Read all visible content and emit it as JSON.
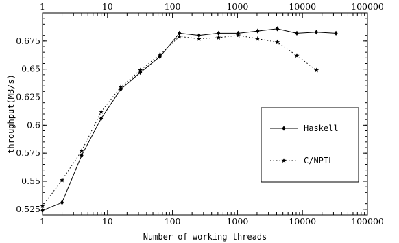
{
  "chart_data": {
    "type": "line",
    "xscale": "log",
    "xlim": [
      1,
      100000
    ],
    "ylim": [
      0.52,
      0.7
    ],
    "xlabel": "Number of working threads",
    "ylabel": "throughput(MB/s)",
    "x_ticks": [
      "1",
      "10",
      "100",
      "1000",
      "10000",
      "100000"
    ],
    "y_ticks": [
      "0.525",
      "0.55",
      "0.575",
      "0.6",
      "0.625",
      "0.65",
      "0.675"
    ],
    "legend_position": "center-right",
    "series": [
      {
        "name": "Haskell",
        "line": "solid",
        "marker": "diamond",
        "x": [
          1,
          2,
          4,
          8,
          16,
          32,
          64,
          128,
          256,
          512,
          1024,
          2048,
          4096,
          8192,
          16384,
          32768
        ],
        "y": [
          0.524,
          0.531,
          0.573,
          0.606,
          0.632,
          0.647,
          0.661,
          0.682,
          0.68,
          0.682,
          0.682,
          0.684,
          0.686,
          0.682,
          0.683,
          0.682
        ]
      },
      {
        "name": "C/NPTL",
        "line": "dotted",
        "marker": "star",
        "x": [
          1,
          2,
          4,
          8,
          16,
          32,
          64,
          128,
          256,
          512,
          1024,
          2048,
          4096,
          8192,
          16384
        ],
        "y": [
          0.528,
          0.551,
          0.577,
          0.612,
          0.634,
          0.649,
          0.663,
          0.679,
          0.677,
          0.678,
          0.68,
          0.677,
          0.674,
          0.662,
          0.649
        ]
      }
    ]
  }
}
